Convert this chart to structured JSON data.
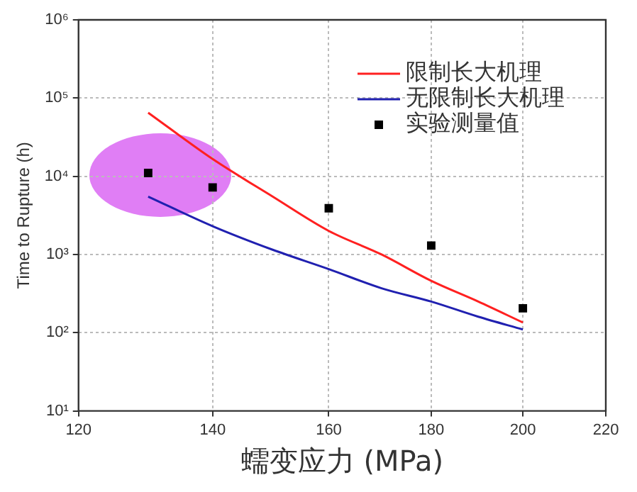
{
  "chart_data": {
    "type": "line",
    "xlabel": "蠕变应力 (MPa)",
    "ylabel": "Time to Rupture (h)",
    "log": "xy",
    "grid": true,
    "legend": "top right",
    "xlim": [
      120,
      220
    ],
    "xticks": [
      120,
      140,
      160,
      180,
      200,
      220
    ],
    "ylim": [
      10,
      1000000
    ],
    "yticks": [
      {
        "value": 10,
        "label": "10¹"
      },
      {
        "value": 100,
        "label": "10²"
      },
      {
        "value": 1000,
        "label": "10³"
      },
      {
        "value": 10000,
        "label": "10⁴"
      },
      {
        "value": 100000,
        "label": "10⁵"
      },
      {
        "value": 1000000,
        "label": "10⁶"
      }
    ],
    "series": [
      {
        "name": "限制长大机理",
        "color": "#ff2020",
        "marker": "none",
        "x": [
          130,
          140,
          150,
          160,
          170,
          180,
          190,
          200
        ],
        "values": [
          65000,
          16600,
          5500,
          2000,
          1000,
          460,
          250,
          135
        ]
      },
      {
        "name": "无限制长大机理",
        "color": "#2020b0",
        "marker": "none",
        "x": [
          130,
          140,
          150,
          160,
          170,
          180,
          190,
          200
        ],
        "values": [
          5500,
          2300,
          1150,
          650,
          370,
          250,
          160,
          110
        ]
      },
      {
        "name": "实验测量值",
        "type": "scatter",
        "color": "#000000",
        "marker": "square",
        "x": [
          130,
          140,
          160,
          180,
          200
        ],
        "values": [
          11000,
          7200,
          3900,
          1300,
          205
        ]
      }
    ]
  }
}
